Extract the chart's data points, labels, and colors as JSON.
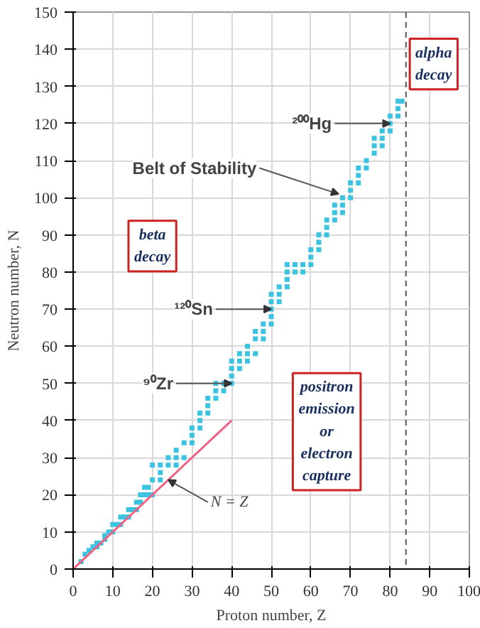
{
  "chart_data": {
    "type": "scatter",
    "xlabel": "Proton number, Z",
    "ylabel": "Neutron number, N",
    "xlim": [
      0,
      100
    ],
    "ylim": [
      0,
      150
    ],
    "xticks": [
      0,
      10,
      20,
      30,
      40,
      50,
      60,
      70,
      80,
      90,
      100
    ],
    "yticks": [
      0,
      10,
      20,
      30,
      40,
      50,
      60,
      70,
      80,
      90,
      100,
      110,
      120,
      130,
      140,
      150
    ],
    "grid": true,
    "series": [
      {
        "marker": "square",
        "color": "#3cc3e0",
        "x": [
          2,
          3,
          4,
          5,
          6,
          6,
          7,
          8,
          8,
          9,
          10,
          10,
          11,
          12,
          12,
          13,
          14,
          14,
          15,
          16,
          16,
          17,
          17,
          18,
          18,
          19,
          19,
          20,
          20,
          20,
          22,
          22,
          22,
          24,
          24,
          26,
          26,
          26,
          28,
          28,
          30,
          30,
          30,
          32,
          32,
          32,
          34,
          34,
          34,
          36,
          36,
          36,
          38,
          38,
          40,
          40,
          40,
          40,
          42,
          42,
          42,
          44,
          44,
          44,
          46,
          46,
          46,
          48,
          48,
          48,
          50,
          50,
          50,
          50,
          50,
          52,
          52,
          52,
          54,
          54,
          54,
          54,
          56,
          56,
          58,
          58,
          60,
          60,
          60,
          62,
          62,
          62,
          64,
          64,
          64,
          66,
          66,
          66,
          68,
          68,
          68,
          70,
          70,
          70,
          72,
          72,
          72,
          74,
          74,
          76,
          76,
          76,
          78,
          78,
          78,
          80,
          80,
          80,
          82,
          82,
          82,
          83
        ],
        "values": [
          2,
          4,
          5,
          6,
          6,
          7,
          7,
          8,
          9,
          10,
          10,
          12,
          12,
          12,
          14,
          14,
          14,
          16,
          16,
          16,
          18,
          18,
          20,
          20,
          22,
          20,
          22,
          20,
          24,
          28,
          24,
          26,
          28,
          28,
          30,
          28,
          30,
          32,
          30,
          34,
          34,
          36,
          38,
          38,
          40,
          42,
          42,
          44,
          46,
          46,
          48,
          50,
          48,
          50,
          50,
          52,
          54,
          56,
          54,
          56,
          58,
          56,
          58,
          60,
          58,
          62,
          64,
          62,
          64,
          66,
          66,
          68,
          70,
          72,
          74,
          72,
          74,
          76,
          76,
          78,
          80,
          82,
          80,
          82,
          80,
          82,
          82,
          84,
          86,
          86,
          88,
          90,
          90,
          92,
          94,
          94,
          96,
          98,
          96,
          98,
          100,
          100,
          102,
          104,
          104,
          106,
          108,
          108,
          110,
          112,
          114,
          116,
          114,
          116,
          118,
          118,
          120,
          122,
          122,
          124,
          126,
          126
        ]
      },
      {
        "type": "line",
        "color": "#f06080",
        "x": [
          0,
          40
        ],
        "values": [
          0,
          40
        ]
      }
    ],
    "ref_lines": [
      {
        "axis": "x",
        "value": 84,
        "color": "#555555",
        "line_style": "dashed"
      }
    ],
    "annotations": [
      {
        "text": "²⁰⁰Hg",
        "x": 80,
        "y": 120
      },
      {
        "text": "Belt of Stability",
        "x": 67,
        "y": 101
      },
      {
        "text": "¹²⁰Sn",
        "x": 50,
        "y": 70
      },
      {
        "text": "⁹⁰Zr",
        "x": 40,
        "y": 50
      },
      {
        "text": "N = Z",
        "x": 24,
        "y": 24
      },
      "beta decay",
      "alpha decay",
      "positron emission or electron capture"
    ]
  }
}
